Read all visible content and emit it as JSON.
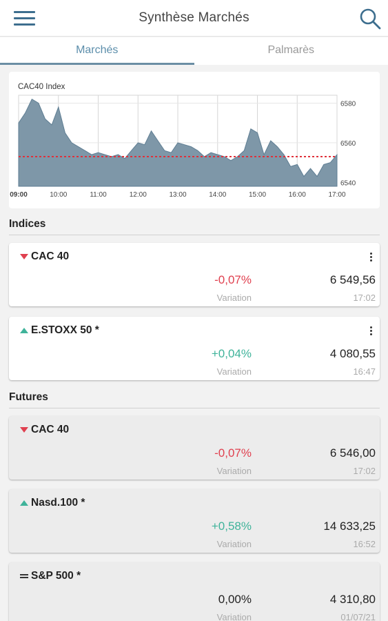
{
  "header": {
    "title": "Synthèse Marchés"
  },
  "tabs": [
    {
      "label": "Marchés",
      "active": true
    },
    {
      "label": "Palmarès",
      "active": false
    }
  ],
  "chart": {
    "title": "CAC40 Index",
    "x_ticks": [
      "09:00",
      "10:00",
      "11:00",
      "12:00",
      "13:00",
      "14:00",
      "15:00",
      "16:00",
      "17:00"
    ],
    "y_ticks": [
      "6580",
      "6560",
      "6540"
    ],
    "reference_line_color": "#e0303a",
    "area_color": "#7e97a8"
  },
  "chart_data": {
    "type": "area",
    "title": "CAC40 Index",
    "xlabel": "",
    "ylabel": "",
    "x": [
      "09:00",
      "09:10",
      "09:20",
      "09:30",
      "09:40",
      "09:50",
      "10:00",
      "10:10",
      "10:20",
      "10:30",
      "10:40",
      "10:50",
      "11:00",
      "11:10",
      "11:20",
      "11:30",
      "11:40",
      "11:50",
      "12:00",
      "12:10",
      "12:20",
      "12:30",
      "12:40",
      "12:50",
      "13:00",
      "13:10",
      "13:20",
      "13:30",
      "13:40",
      "13:50",
      "14:00",
      "14:10",
      "14:20",
      "14:30",
      "14:40",
      "14:50",
      "15:00",
      "15:10",
      "15:20",
      "15:30",
      "15:40",
      "15:50",
      "16:00",
      "16:10",
      "16:20",
      "16:30",
      "16:40",
      "16:50",
      "17:00"
    ],
    "values": [
      6570,
      6575,
      6582,
      6580,
      6572,
      6569,
      6578,
      6565,
      6560,
      6558,
      6556,
      6554,
      6555,
      6554,
      6553,
      6554,
      6552,
      6556,
      6560,
      6559,
      6566,
      6561,
      6556,
      6555,
      6560,
      6559,
      6558,
      6556,
      6553,
      6555,
      6554,
      6553,
      6551,
      6553,
      6556,
      6567,
      6565,
      6554,
      6561,
      6558,
      6554,
      6548,
      6549,
      6543,
      6547,
      6543,
      6549,
      6550,
      6554
    ],
    "reference_line": 6553,
    "ylim": [
      6538,
      6584
    ],
    "yticks": [
      6580,
      6560,
      6540
    ],
    "grid": true
  },
  "sections": {
    "indices": "Indices",
    "futures": "Futures"
  },
  "indices": [
    {
      "name": "CAC 40",
      "trend": "down",
      "variation": "-0,07%",
      "value": "6 549,56",
      "variation_label": "Variation",
      "time": "17:02"
    },
    {
      "name": "E.STOXX 50 *",
      "trend": "up",
      "variation": "+0,04%",
      "value": "4 080,55",
      "variation_label": "Variation",
      "time": "16:47"
    }
  ],
  "futures": [
    {
      "name": "CAC 40",
      "trend": "down",
      "variation": "-0,07%",
      "value": "6 546,00",
      "variation_label": "Variation",
      "time": "17:02"
    },
    {
      "name": "Nasd.100 *",
      "trend": "up",
      "variation": "+0,58%",
      "value": "14 633,25",
      "variation_label": "Variation",
      "time": "16:52"
    },
    {
      "name": "S&P 500 *",
      "trend": "flat",
      "variation": "0,00%",
      "value": "4 310,80",
      "variation_label": "Variation",
      "time": "01/07/21"
    }
  ],
  "colors": {
    "negative": "#e0404f",
    "positive": "#3fb39a",
    "accent": "#5c8eab"
  }
}
